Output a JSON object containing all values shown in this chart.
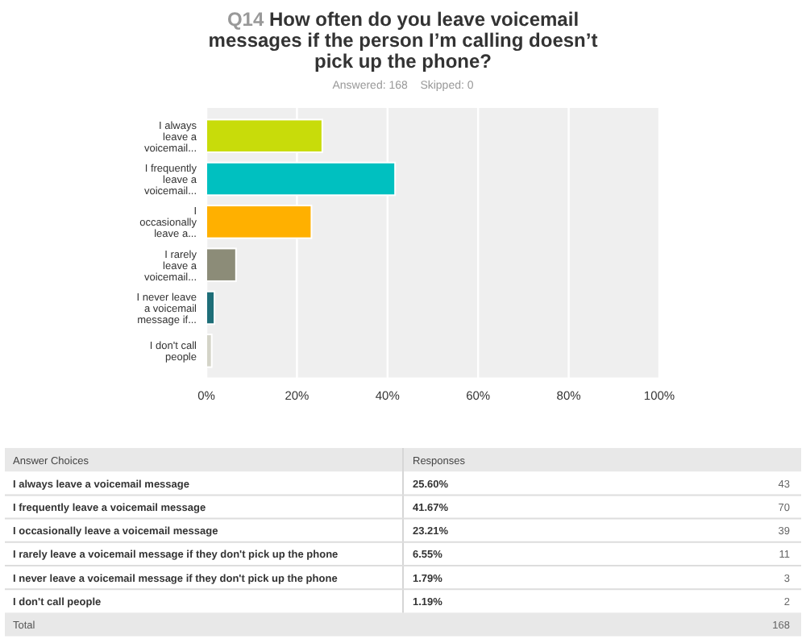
{
  "chart_data": [
    {
      "type": "bar",
      "orientation": "horizontal",
      "title": "Q14 How often do you leave voicemail messages if the person I’m calling doesn’t pick up the phone?",
      "subtitle": "Answered: 168    Skipped: 0",
      "categories": [
        "I always leave a voicemail...",
        "I frequently leave a voicemail...",
        "I occasionally leave a...",
        "I rarely leave a voicemail...",
        "I never leave a voicemail message if...",
        "I don't call people"
      ],
      "values": [
        25.6,
        41.67,
        23.21,
        6.55,
        1.79,
        1.19
      ],
      "colors": [
        "#c8dc0a",
        "#00c0c0",
        "#ffb000",
        "#8c8c78",
        "#1e6e78",
        "#d4d4c8"
      ],
      "xlim": [
        0,
        100
      ],
      "xticks": [
        {
          "value": 0,
          "label": "0%"
        },
        {
          "value": 20,
          "label": "20%"
        },
        {
          "value": 40,
          "label": "40%"
        },
        {
          "value": 60,
          "label": "60%"
        },
        {
          "value": 80,
          "label": "80%"
        },
        {
          "value": 100,
          "label": "100%"
        }
      ],
      "grid": "x"
    },
    {
      "type": "other",
      "annotations": [
        "Answer Choices",
        "Responses",
        "I always leave a voicemail message",
        "25.60%",
        "43",
        "I frequently leave a voicemail message",
        "41.67%",
        "70",
        "I occasionally leave a voicemail message",
        "23.21%",
        "39",
        "I rarely leave a voicemail message if they don't pick up the phone",
        "6.55%",
        "11",
        "I never leave a voicemail message if they don't pick up the phone",
        "1.79%",
        "3",
        "I don't call people",
        "1.19%",
        "2",
        "Total",
        "168"
      ]
    }
  ]
}
